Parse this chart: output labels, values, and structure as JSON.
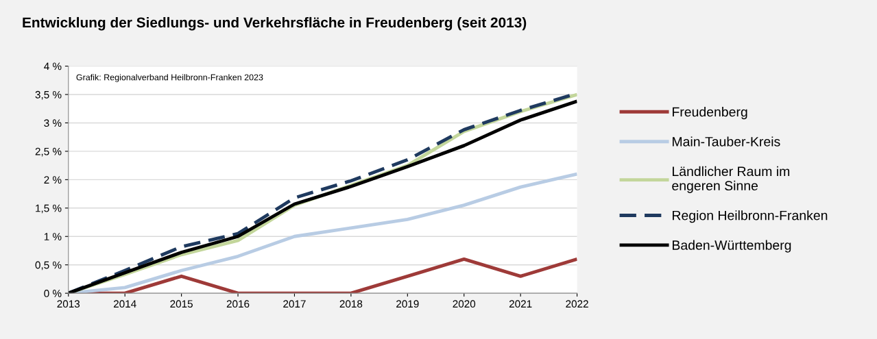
{
  "chart_data": {
    "type": "line",
    "title": "Entwicklung der Siedlungs- und Verkehrsfläche in Freudenberg (seit 2013)",
    "x": [
      2013,
      2014,
      2015,
      2016,
      2017,
      2018,
      2019,
      2020,
      2021,
      2022
    ],
    "xlim": [
      2013,
      2022
    ],
    "xticks": [
      2013,
      2014,
      2015,
      2016,
      2017,
      2018,
      2019,
      2020,
      2021,
      2022
    ],
    "ylim": [
      0,
      4
    ],
    "yticks": [
      {
        "value": 0,
        "label": "0 %"
      },
      {
        "value": 0.5,
        "label": "0,5 %"
      },
      {
        "value": 1,
        "label": "1 %"
      },
      {
        "value": 1.5,
        "label": "1,5 %"
      },
      {
        "value": 2,
        "label": "2 %"
      },
      {
        "value": 2.5,
        "label": "2,5 %"
      },
      {
        "value": 3,
        "label": "3 %"
      },
      {
        "value": 3.5,
        "label": "3,5 %"
      },
      {
        "value": 4,
        "label": "4 %"
      }
    ],
    "grid": "y",
    "legend": "right",
    "marker": "none",
    "annotations": [
      "Grafik: Regionalverband Heilbronn-Franken 2023"
    ],
    "series": [
      {
        "name": "Freudenberg",
        "color": "#9e3a38",
        "line_style": "solid",
        "values": [
          0,
          0,
          0.3,
          0,
          0,
          0,
          0.3,
          0.6,
          0.3,
          0.6
        ]
      },
      {
        "name": "Main-Tauber-Kreis",
        "color": "#b8cce4",
        "line_style": "solid",
        "values": [
          0,
          0.1,
          0.4,
          0.65,
          1.0,
          1.15,
          1.3,
          1.55,
          1.87,
          2.1
        ]
      },
      {
        "name": "Ländlicher Raum im\nengeren Sinne",
        "color": "#c3d69b",
        "line_style": "solid",
        "values": [
          0,
          0.33,
          0.68,
          0.93,
          1.55,
          1.9,
          2.25,
          2.85,
          3.2,
          3.5
        ]
      },
      {
        "name": "Region Heilbronn-Franken",
        "color": "#1f3a5f",
        "line_style": "dashed",
        "values": [
          0,
          0.4,
          0.82,
          1.05,
          1.68,
          1.98,
          2.35,
          2.88,
          3.22,
          3.52
        ]
      },
      {
        "name": "Baden-Württemberg",
        "color": "#000000",
        "line_style": "solid",
        "values": [
          0,
          0.36,
          0.72,
          1.0,
          1.57,
          1.88,
          2.23,
          2.6,
          3.05,
          3.38
        ]
      }
    ]
  }
}
